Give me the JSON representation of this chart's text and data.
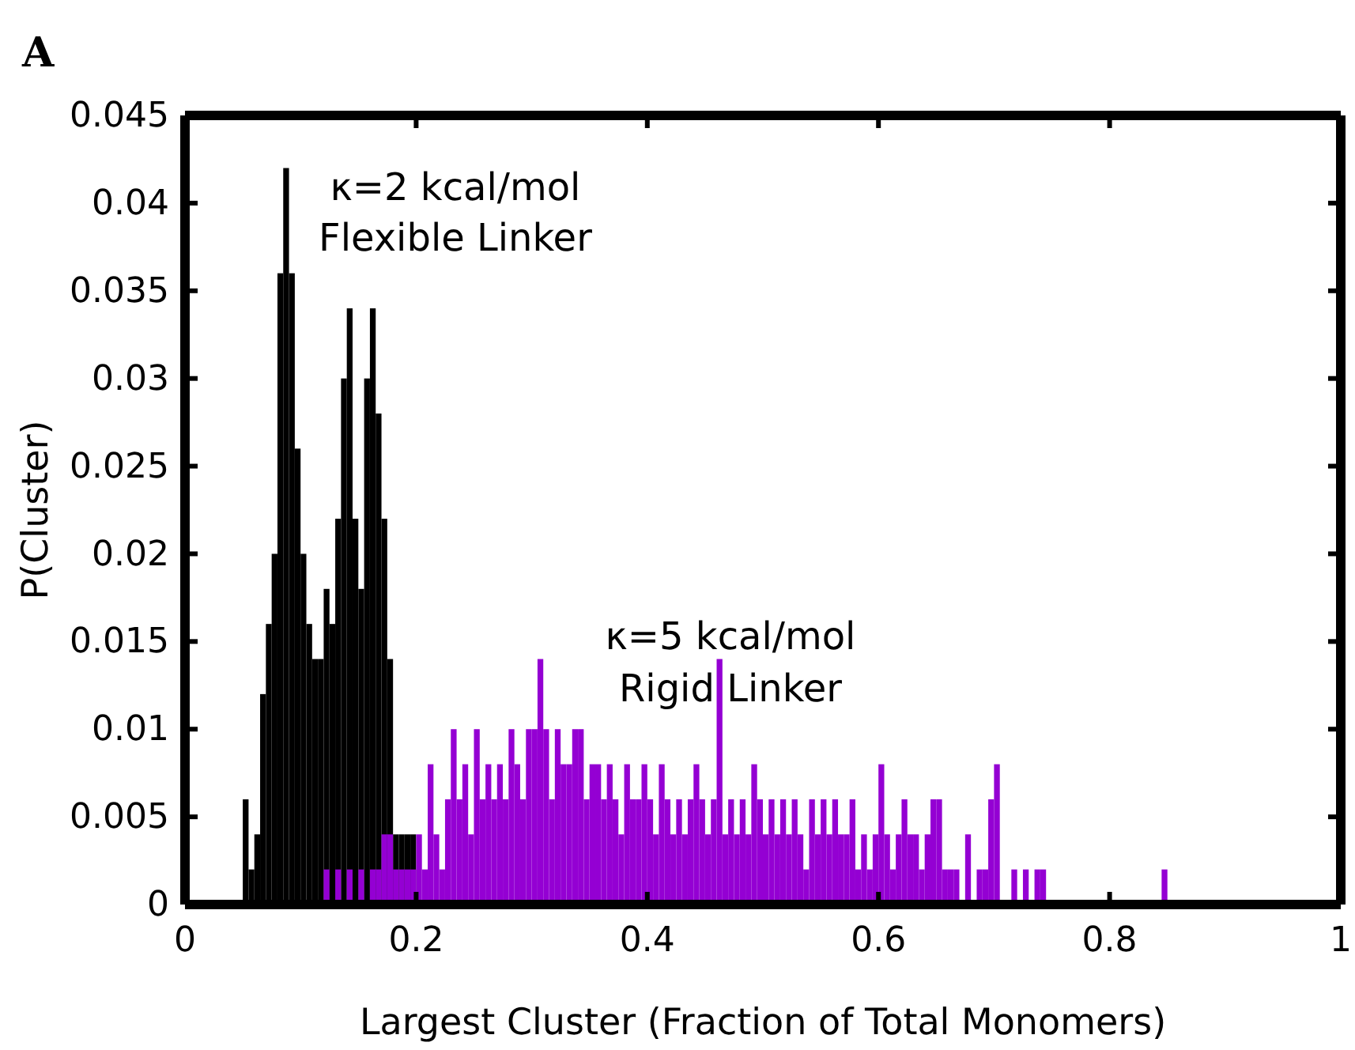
{
  "chart_data": {
    "type": "histogram",
    "title": "A",
    "xlabel": "Largest Cluster (Fraction of Total Monomers)",
    "ylabel": "P(Cluster)",
    "xlim": [
      0,
      1
    ],
    "xticks": [
      0,
      0.2,
      0.4,
      0.6,
      0.8,
      1
    ],
    "ylim": [
      0,
      0.045
    ],
    "yticks": [
      0,
      0.005,
      0.01,
      0.015,
      0.02,
      0.025,
      0.03,
      0.035,
      0.04,
      0.045
    ],
    "grid": false,
    "bins": [
      0.05,
      0.055,
      0.06,
      0.065,
      0.07,
      0.075,
      0.08,
      0.085,
      0.09,
      0.095,
      0.1,
      0.105,
      0.11,
      0.115,
      0.12,
      0.125,
      0.13,
      0.135,
      0.14,
      0.145,
      0.15,
      0.155,
      0.16,
      0.165,
      0.17,
      0.175,
      0.18,
      0.185,
      0.19,
      0.195,
      0.2,
      0.205,
      0.21,
      0.215,
      0.22,
      0.225,
      0.23,
      0.235,
      0.24,
      0.245,
      0.25,
      0.255,
      0.26,
      0.265,
      0.27,
      0.275,
      0.28,
      0.285,
      0.29,
      0.295,
      0.3,
      0.305,
      0.31,
      0.315,
      0.32,
      0.325,
      0.33,
      0.335,
      0.34,
      0.345,
      0.35,
      0.355,
      0.36,
      0.365,
      0.37,
      0.375,
      0.38,
      0.385,
      0.39,
      0.395,
      0.4,
      0.405,
      0.41,
      0.415,
      0.42,
      0.425,
      0.43,
      0.435,
      0.44,
      0.445,
      0.45,
      0.455,
      0.46,
      0.465,
      0.47,
      0.475,
      0.48,
      0.485,
      0.49,
      0.495,
      0.5,
      0.505,
      0.51,
      0.515,
      0.52,
      0.525,
      0.53,
      0.535,
      0.54,
      0.545,
      0.55,
      0.555,
      0.56,
      0.565,
      0.57,
      0.575,
      0.58,
      0.585,
      0.59,
      0.595,
      0.6,
      0.605,
      0.61,
      0.615,
      0.62,
      0.625,
      0.63,
      0.635,
      0.64,
      0.645,
      0.65,
      0.655,
      0.66,
      0.665,
      0.67,
      0.675,
      0.68,
      0.685,
      0.69,
      0.695,
      0.7,
      0.705,
      0.71,
      0.715,
      0.72,
      0.725,
      0.73,
      0.735,
      0.74,
      0.745,
      0.75,
      0.755,
      0.76,
      0.765,
      0.77,
      0.775,
      0.78,
      0.785,
      0.79,
      0.795,
      0.8,
      0.805,
      0.81,
      0.815,
      0.82,
      0.825,
      0.83,
      0.835,
      0.84,
      0.845,
      0.85
    ],
    "series": [
      {
        "color": "#000000",
        "values": [
          0.006,
          0.002,
          0.004,
          0.012,
          0.016,
          0.02,
          0.036,
          0.042,
          0.036,
          0.026,
          0.02,
          0.016,
          0.014,
          0.014,
          0.018,
          0.016,
          0.022,
          0.03,
          0.034,
          0.022,
          0.018,
          0.03,
          0.034,
          0.028,
          0.022,
          0.014,
          0.004,
          0.004,
          0.004,
          0.004,
          0,
          0,
          0,
          0,
          0,
          0,
          0,
          0,
          0,
          0,
          0,
          0,
          0,
          0,
          0,
          0,
          0,
          0,
          0,
          0,
          0,
          0,
          0,
          0,
          0,
          0,
          0,
          0,
          0,
          0,
          0,
          0,
          0,
          0,
          0,
          0,
          0,
          0,
          0,
          0,
          0,
          0,
          0,
          0,
          0,
          0,
          0,
          0,
          0,
          0,
          0,
          0,
          0,
          0,
          0,
          0,
          0,
          0,
          0,
          0,
          0,
          0,
          0,
          0,
          0,
          0,
          0,
          0,
          0,
          0,
          0,
          0,
          0,
          0,
          0,
          0,
          0,
          0,
          0,
          0,
          0,
          0,
          0,
          0,
          0,
          0,
          0,
          0,
          0,
          0,
          0,
          0,
          0,
          0,
          0,
          0,
          0,
          0,
          0,
          0,
          0,
          0,
          0,
          0,
          0,
          0,
          0,
          0,
          0,
          0,
          0,
          0,
          0,
          0,
          0,
          0,
          0,
          0,
          0,
          0,
          0,
          0,
          0,
          0,
          0,
          0,
          0,
          0,
          0,
          0
        ]
      },
      {
        "color": "#9400d3",
        "values": [
          0,
          0,
          0,
          0,
          0,
          0,
          0,
          0,
          0,
          0,
          0,
          0,
          0,
          0,
          0.002,
          0,
          0.002,
          0,
          0.002,
          0,
          0.002,
          0,
          0.002,
          0.002,
          0.004,
          0.004,
          0.002,
          0.002,
          0.002,
          0.002,
          0.004,
          0.002,
          0.008,
          0.004,
          0.002,
          0.006,
          0.01,
          0.006,
          0.008,
          0.004,
          0.01,
          0.006,
          0.008,
          0.006,
          0.008,
          0.006,
          0.01,
          0.008,
          0.006,
          0.01,
          0.01,
          0.014,
          0.01,
          0.006,
          0.01,
          0.008,
          0.008,
          0.01,
          0.01,
          0.006,
          0.008,
          0.008,
          0.006,
          0.008,
          0.006,
          0.004,
          0.008,
          0.006,
          0.006,
          0.008,
          0.006,
          0.004,
          0.008,
          0.006,
          0.004,
          0.006,
          0.004,
          0.006,
          0.008,
          0.006,
          0.004,
          0.006,
          0.014,
          0.004,
          0.006,
          0.004,
          0.006,
          0.004,
          0.008,
          0.006,
          0.004,
          0.006,
          0.004,
          0.006,
          0.004,
          0.006,
          0.004,
          0.002,
          0.006,
          0.004,
          0.006,
          0.004,
          0.006,
          0.004,
          0.004,
          0.006,
          0.002,
          0.004,
          0.002,
          0.004,
          0.008,
          0.004,
          0.002,
          0.004,
          0.006,
          0.004,
          0.004,
          0.002,
          0.004,
          0.006,
          0.006,
          0.002,
          0.002,
          0.002,
          0,
          0.004,
          0,
          0.002,
          0.002,
          0.006,
          0.008,
          0,
          0,
          0.002,
          0,
          0.002,
          0,
          0.002,
          0.002,
          0,
          0,
          0,
          0,
          0,
          0,
          0,
          0,
          0,
          0,
          0,
          0,
          0,
          0,
          0,
          0,
          0,
          0,
          0,
          0,
          0.002
        ]
      }
    ],
    "annotations": [
      "κ=2 kcal/mol",
      "Flexible Linker",
      "κ=5 kcal/mol",
      "Rigid Linker"
    ]
  }
}
